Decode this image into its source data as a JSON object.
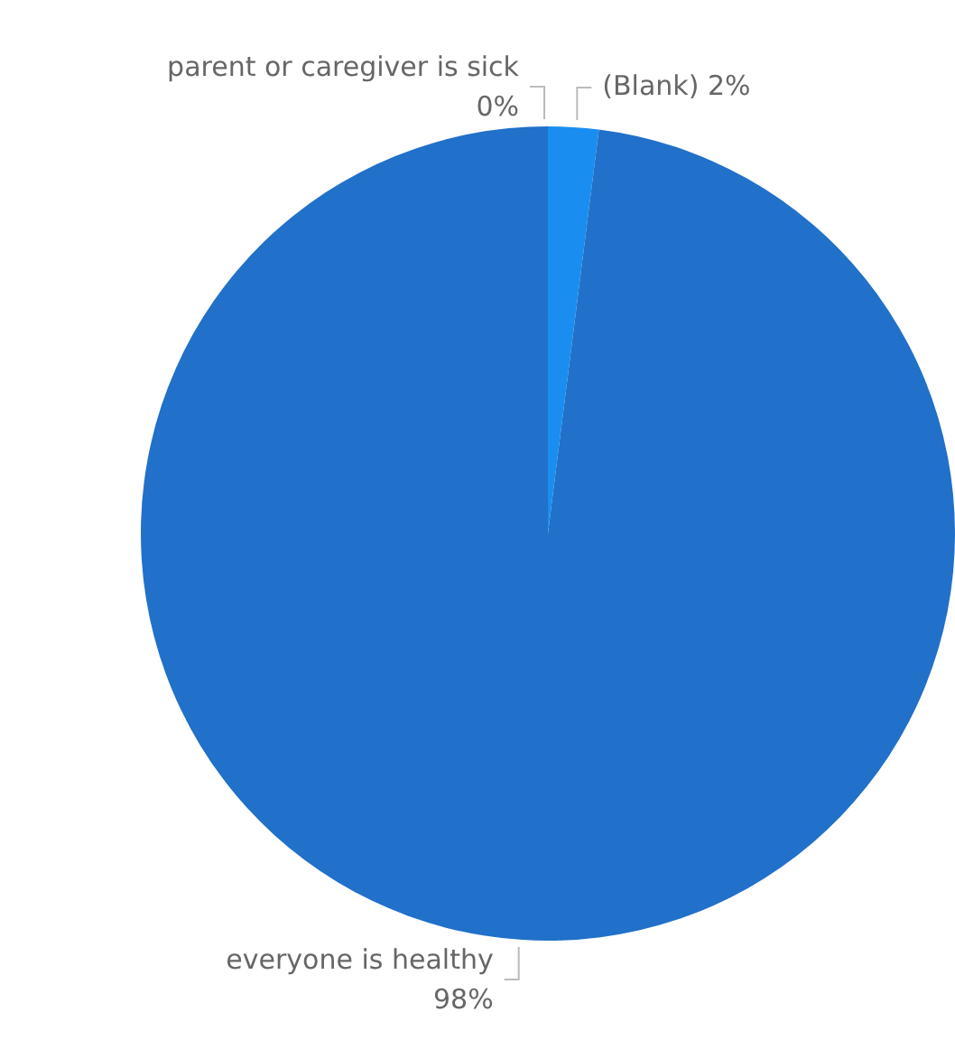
{
  "chart_data": {
    "type": "pie",
    "categories": [
      "parent or caregiver is sick",
      "(Blank)",
      "everyone is healthy"
    ],
    "values": [
      0,
      2,
      98
    ],
    "colors": [
      "#d9541e",
      "#1a8ef0",
      "#2170c9"
    ],
    "value_labels": [
      "0%",
      "2%",
      "98%"
    ],
    "legend": false
  }
}
